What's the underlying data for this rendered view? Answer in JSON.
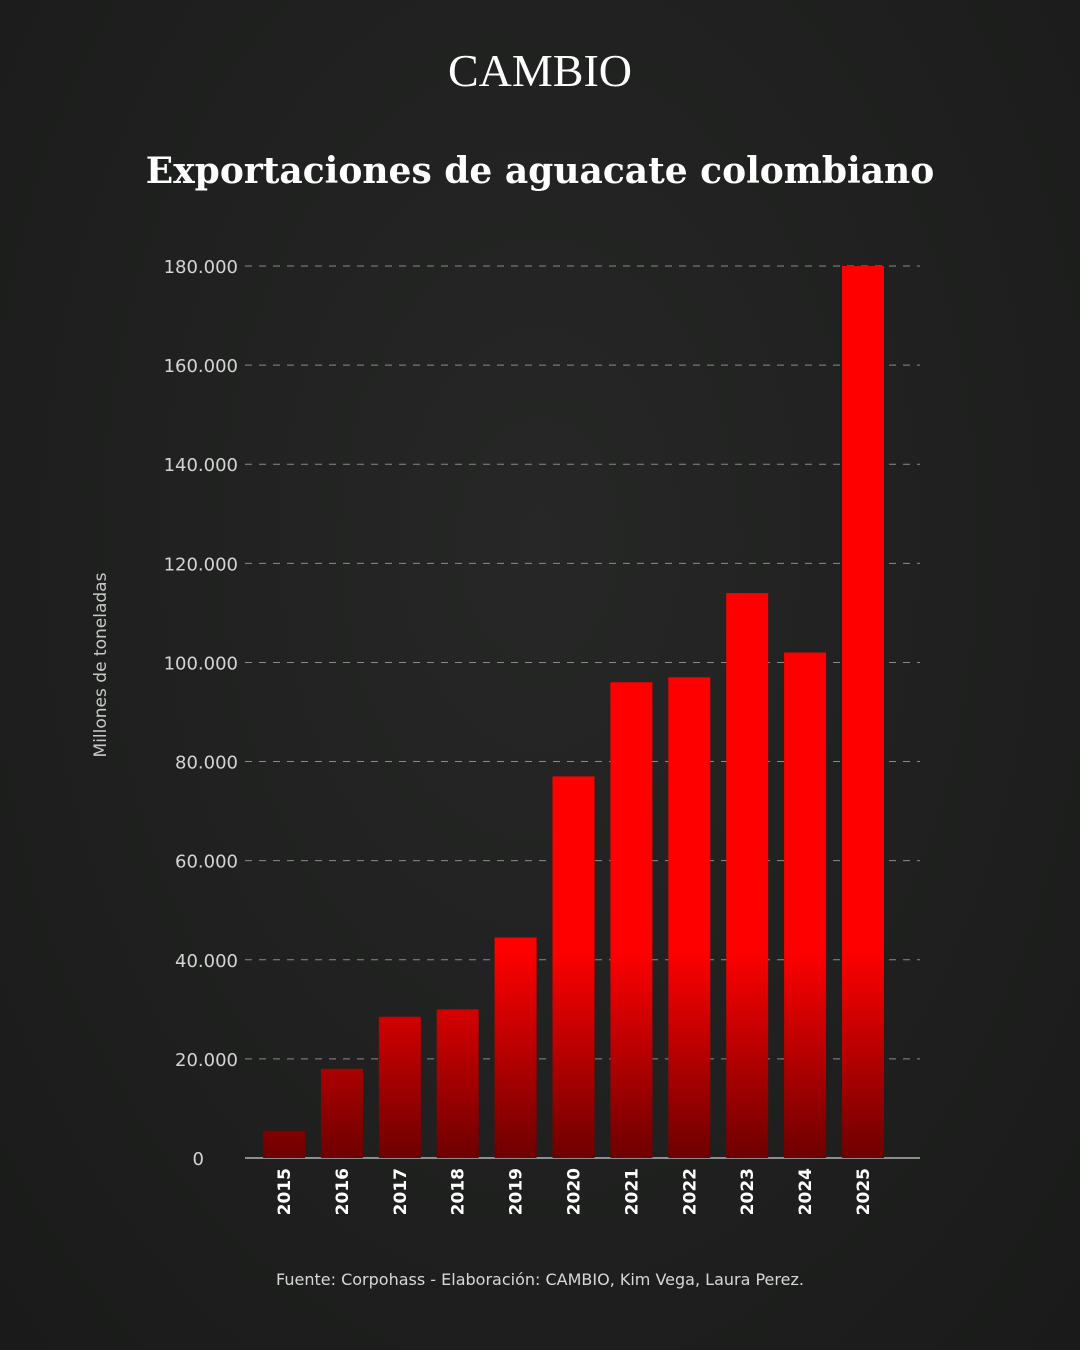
{
  "header": {
    "brand": "CAMBIO",
    "title": "Exportaciones de aguacate colombiano"
  },
  "footer": {
    "source": "Fuente: Corpohass - Elaboración: CAMBIO, Kim Vega, Laura Perez."
  },
  "colors": {
    "bar": "#ff0000",
    "bar_dark": "#6e0000",
    "background": "#1e1f1e",
    "grid": "#8a8a8a"
  },
  "chart_data": {
    "type": "bar",
    "title": "Exportaciones de aguacate colombiano",
    "xlabel": "",
    "ylabel": "Millones de toneladas",
    "categories": [
      "2015",
      "2016",
      "2017",
      "2018",
      "2019",
      "2020",
      "2021",
      "2022",
      "2023",
      "2024",
      "2025"
    ],
    "values": [
      5500,
      18000,
      28500,
      30000,
      44500,
      77000,
      96000,
      97000,
      114000,
      102000,
      180000
    ],
    "ylim": [
      0,
      180000
    ],
    "yticks": [
      0,
      20000,
      40000,
      60000,
      80000,
      100000,
      120000,
      140000,
      160000,
      180000
    ],
    "ytick_labels": [
      "0",
      "20.000",
      "40.000",
      "60.000",
      "80.000",
      "100.000",
      "120.000",
      "140.000",
      "160.000",
      "180.000"
    ],
    "grid": true,
    "grid_style": "dashed horizontal",
    "legend": "none"
  }
}
